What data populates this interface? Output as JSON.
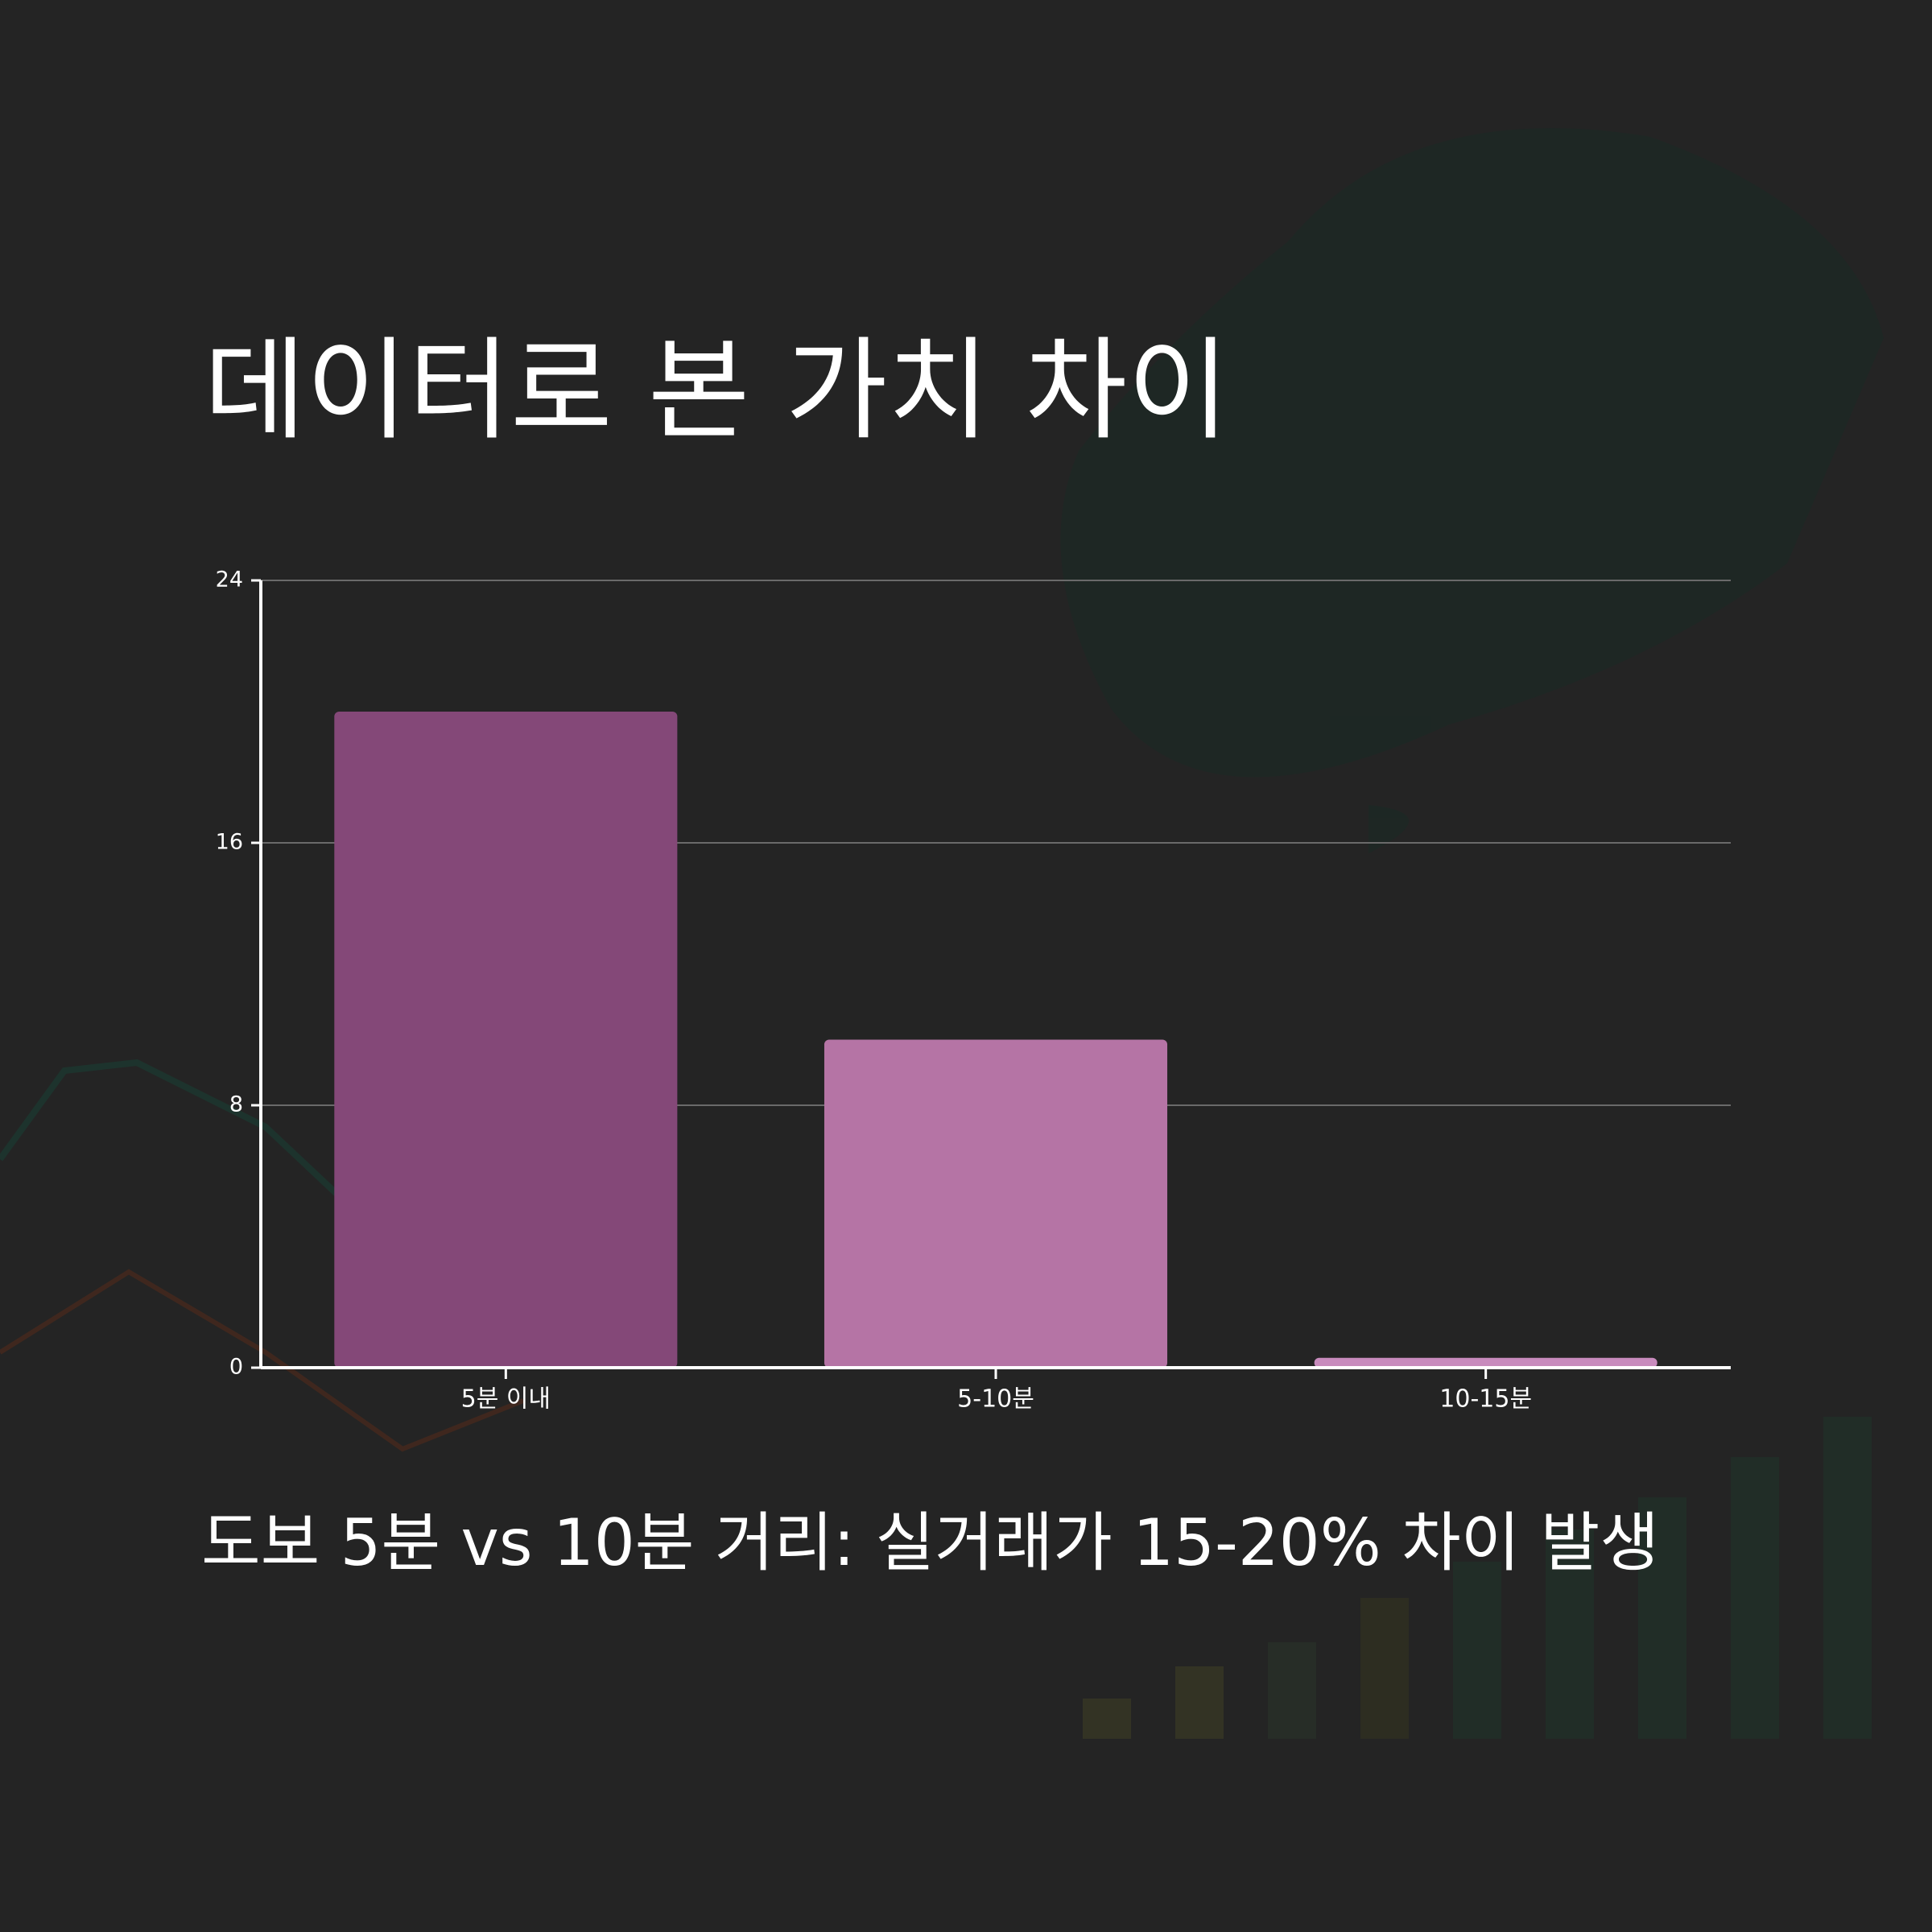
{
  "chart_data": {
    "type": "bar",
    "title": "데이터로 본 가치 차이",
    "caption": "도보 5분 vs 10분 거리: 실거래가 15-20% 차이 발생",
    "categories": [
      "5분 이내",
      "5-10분",
      "10-15분"
    ],
    "values": [
      20,
      10,
      0.3
    ],
    "colors": [
      "#844878",
      "#b574a5",
      "#c88bbd"
    ],
    "ylim": [
      0,
      24
    ],
    "yticks": [
      0,
      8,
      16,
      24
    ],
    "grid": true
  }
}
